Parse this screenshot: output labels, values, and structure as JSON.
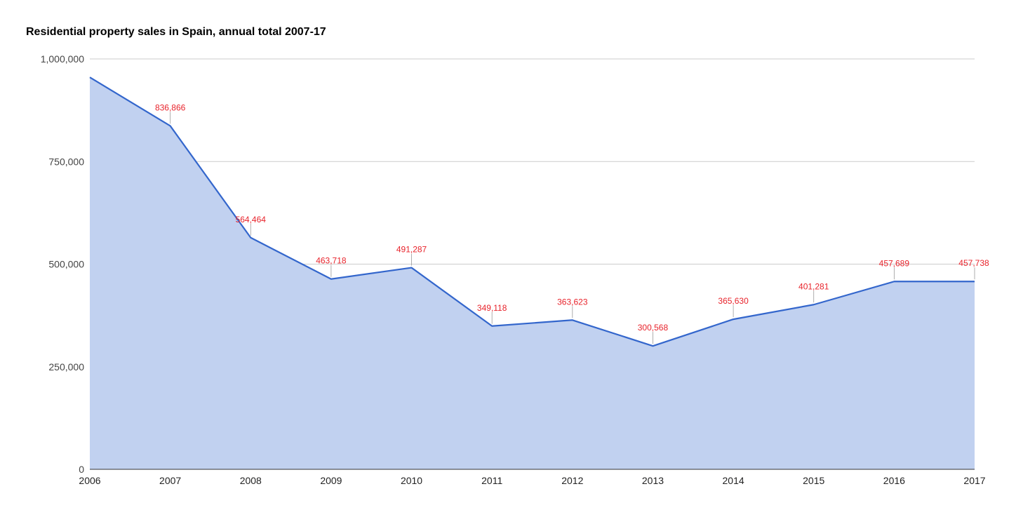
{
  "chart_data": {
    "type": "area",
    "title": "Residential property sales in Spain, annual total 2007-17",
    "x": [
      "2006",
      "2007",
      "2008",
      "2009",
      "2010",
      "2011",
      "2012",
      "2013",
      "2014",
      "2015",
      "2016",
      "2017"
    ],
    "series": [
      {
        "values": [
          955186,
          836866,
          564464,
          463718,
          491287,
          349118,
          363623,
          300568,
          365630,
          401281,
          457689,
          457738
        ]
      }
    ],
    "data_labels": [
      "",
      "836,866",
      "564,464",
      "463,718",
      "491,287",
      "349,118",
      "363,623",
      "300,568",
      "365,630",
      "401,281",
      "457,689",
      "457,738"
    ],
    "yticks": [
      0,
      250000,
      500000,
      750000,
      1000000
    ],
    "ytick_labels": [
      "0",
      "250,000",
      "500,000",
      "750,000",
      "1,000,000"
    ],
    "ylim": [
      0,
      1000000
    ],
    "grid": true,
    "legend": "none",
    "colors": {
      "line": "#3366cc",
      "area": "#c1d1f0",
      "gridline": "#cccccc",
      "axis": "#333333",
      "data_label": "#e8232b",
      "leader": "#999999"
    }
  }
}
